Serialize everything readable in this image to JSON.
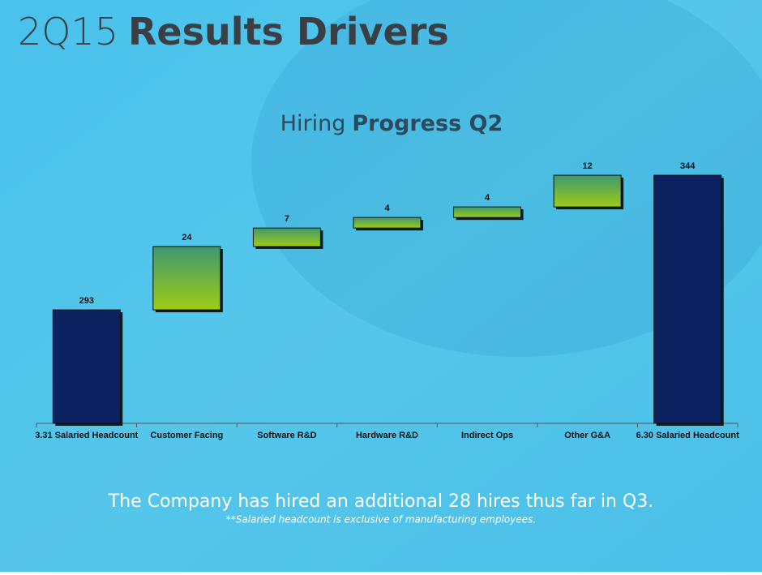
{
  "header": {
    "title_light": "2Q15",
    "title_bold": "Results Drivers"
  },
  "chart_data": {
    "type": "waterfall",
    "subtitle_light": "Hiring",
    "subtitle_bold": "Progress Q2",
    "categories": [
      "3.31 Salaried Headcount",
      "Customer Facing",
      "Software R&D",
      "Hardware R&D",
      "Indirect Ops",
      "Other G&A",
      "6.30 Salaried Headcount"
    ],
    "values": [
      293,
      24,
      7,
      4,
      4,
      12,
      344
    ],
    "measure": [
      "absolute",
      "relative",
      "relative",
      "relative",
      "relative",
      "relative",
      "total"
    ],
    "total_color": "#0c2160",
    "increase_colors": [
      "#3e9870",
      "#9dcc14"
    ],
    "ylim": [
      250,
      360
    ]
  },
  "footer": {
    "text": "The Company has hired an additional 28 hires thus far in Q3.",
    "note": "**Salaried headcount is exclusive of manufacturing employees."
  }
}
